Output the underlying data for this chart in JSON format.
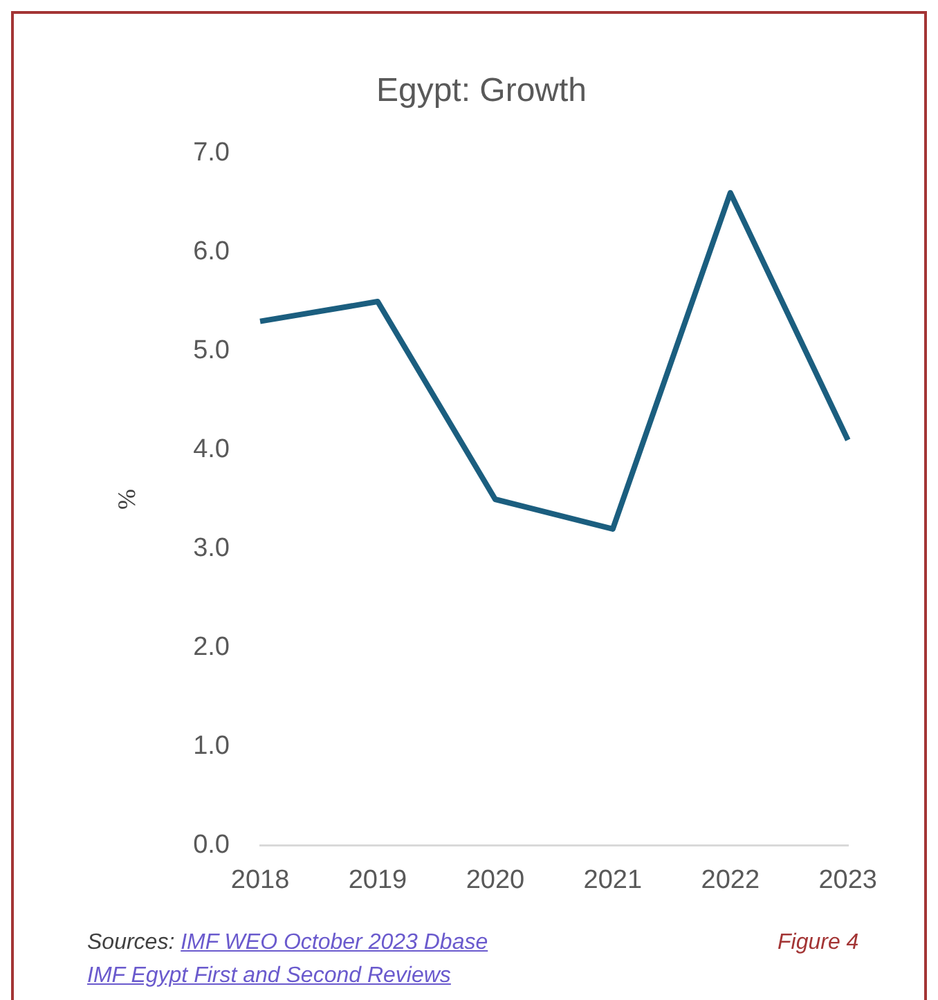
{
  "chart_data": {
    "type": "line",
    "title": "Egypt: Growth",
    "ylabel": "%",
    "categories": [
      "2018",
      "2019",
      "2020",
      "2021",
      "2022",
      "2023"
    ],
    "series": [
      {
        "color": "#1b5e7f",
        "values": [
          5.3,
          5.5,
          3.5,
          3.2,
          6.6,
          4.1
        ]
      }
    ],
    "ylim": [
      0,
      7
    ],
    "yticks": [
      {
        "value": 0,
        "label": "0.0"
      },
      {
        "value": 1,
        "label": "1.0"
      },
      {
        "value": 2,
        "label": "2.0"
      },
      {
        "value": 3,
        "label": "3.0"
      },
      {
        "value": 4,
        "label": "4.0"
      },
      {
        "value": 5,
        "label": "5.0"
      },
      {
        "value": 6,
        "label": "6.0"
      },
      {
        "value": 7,
        "label": "7.0"
      }
    ],
    "grid": false,
    "legend": false,
    "marker": "none",
    "line_style": "solid",
    "annotations": [
      "Sources:",
      "IMF WEO October 2023 Dbase",
      "IMF Egypt First and Second Reviews",
      "Figure 4"
    ]
  }
}
